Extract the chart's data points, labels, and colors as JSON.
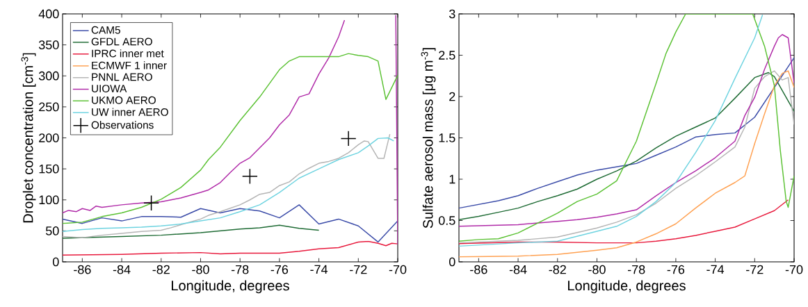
{
  "chart_data": [
    {
      "type": "line",
      "xlabel": "Longitude, degrees",
      "ylabel": "Droplet concentration [cm$^{-3}$]",
      "xlim": [
        -87,
        -70
      ],
      "xticks": [
        -86,
        -84,
        -82,
        -80,
        -78,
        -76,
        -74,
        -72,
        -70
      ],
      "ylim": [
        0,
        400
      ],
      "yticks": [
        0,
        50,
        100,
        150,
        200,
        250,
        300,
        350,
        400
      ],
      "legend": "top left",
      "grid": false,
      "series": [
        {
          "name": "CAM5",
          "color": "#3a4ba8",
          "x": [
            -87,
            -86,
            -85,
            -84,
            -83,
            -82,
            -81,
            -80,
            -79,
            -78,
            -77,
            -76,
            -75,
            -74,
            -73,
            -72,
            -71,
            -70
          ],
          "values": [
            69,
            62,
            71,
            66,
            73,
            73,
            72,
            86,
            79,
            86,
            82,
            71,
            92,
            61,
            69,
            58,
            32,
            66
          ]
        },
        {
          "name": "GFDL AERO",
          "color": "#1e6b34",
          "x": [
            -87,
            -84,
            -82,
            -80,
            -78,
            -77,
            -76,
            -75,
            -74
          ],
          "values": [
            38,
            41,
            43,
            47,
            53,
            55,
            59,
            54,
            51
          ]
        },
        {
          "name": "IPRC inner met",
          "color": "#e8193c",
          "x": [
            -87,
            -84,
            -82,
            -80,
            -79,
            -78,
            -76,
            -75,
            -74,
            -73,
            -72,
            -71.5,
            -71,
            -70.6,
            -70.3,
            -70
          ],
          "values": [
            11,
            12,
            14,
            15,
            13,
            14,
            14,
            17,
            21,
            23,
            32,
            33,
            30,
            26,
            30,
            29
          ]
        },
        {
          "name": "ECMWF 1 inner",
          "color": "#ffa050"
        },
        {
          "name": "PNNL AERO",
          "color": "#b4b4b4",
          "x": [
            -87,
            -86,
            -85,
            -84,
            -83,
            -82,
            -81.5,
            -81,
            -80,
            -79.6,
            -79,
            -78,
            -77.5,
            -77,
            -76.5,
            -76,
            -75.5,
            -75,
            -74.5,
            -74,
            -73.5,
            -73,
            -72.5,
            -72,
            -71.7,
            -71.5,
            -71,
            -70.7,
            -70.4
          ],
          "values": [
            41,
            39,
            43,
            46,
            49,
            51,
            55,
            60,
            69,
            75,
            81,
            92,
            100,
            109,
            112,
            123,
            129,
            142,
            151,
            159,
            162,
            167,
            176,
            189,
            195,
            194,
            167,
            167,
            206
          ]
        },
        {
          "name": "UIOWA",
          "color": "#b02aa8",
          "x": [
            -87,
            -86.7,
            -86.3,
            -86,
            -85.6,
            -85.3,
            -85,
            -84,
            -83,
            -82,
            -81.5,
            -81,
            -80,
            -79.6,
            -79,
            -78.5,
            -78,
            -77.5,
            -77,
            -76.5,
            -76,
            -75.5,
            -75,
            -74.5,
            -74,
            -73.5,
            -73,
            -72.7,
            -72.6,
            -70.1,
            -70
          ],
          "values": [
            79,
            83,
            81,
            86,
            83,
            90,
            88,
            92,
            95,
            97,
            100,
            103,
            112,
            116,
            128,
            144,
            159,
            168,
            184,
            200,
            221,
            237,
            266,
            271,
            303,
            329,
            363,
            390,
            null,
            398,
            28
          ]
        },
        {
          "name": "UKMO AERO",
          "color": "#5ac132",
          "x": [
            -87,
            -86,
            -85,
            -84,
            -83,
            -82,
            -81,
            -80,
            -79.6,
            -79,
            -78,
            -77,
            -76,
            -75.5,
            -75,
            -74,
            -73,
            -72.5,
            -72,
            -71.5,
            -71,
            -70.6,
            -70
          ],
          "values": [
            62,
            64,
            73,
            79,
            88,
            101,
            120,
            148,
            165,
            185,
            228,
            266,
            310,
            324,
            331,
            331,
            331,
            336,
            333,
            331,
            324,
            262,
            301
          ]
        },
        {
          "name": "UW inner AERO",
          "color": "#6dd3e0",
          "x": [
            -87,
            -86,
            -85,
            -84,
            -83,
            -82,
            -81,
            -80,
            -79,
            -78,
            -77,
            -76,
            -75,
            -74,
            -73,
            -72,
            -71.5,
            -71,
            -70.5,
            -70.2
          ],
          "values": [
            49,
            52,
            54,
            55,
            56,
            58,
            61,
            66,
            71,
            81,
            92,
            112,
            135,
            150,
            165,
            176,
            187,
            199,
            200,
            195
          ]
        },
        {
          "name": "Observations",
          "type": "scatter",
          "marker": "cross",
          "color": "#000000",
          "x": [
            -82.5,
            -77.5,
            -72.5
          ],
          "values": [
            95,
            138,
            199
          ]
        }
      ]
    },
    {
      "type": "line",
      "xlabel": "Longitude, degrees",
      "ylabel": "Sulfate aerosol mass [μg m$^{-3}$]",
      "xlim": [
        -87,
        -70
      ],
      "xticks": [
        -86,
        -84,
        -82,
        -80,
        -78,
        -76,
        -74,
        -72,
        -70
      ],
      "ylim": [
        0,
        3
      ],
      "yticks": [
        0,
        0.5,
        1,
        1.5,
        2,
        2.5,
        3
      ],
      "grid": false,
      "series": [
        {
          "color": "#3a4ba8",
          "x": [
            -87,
            -85,
            -84,
            -83,
            -82,
            -81,
            -80,
            -78.5,
            -78,
            -77,
            -76,
            -75,
            -74,
            -73,
            -72,
            -71,
            -70
          ],
          "values": [
            0.65,
            0.74,
            0.8,
            0.89,
            0.97,
            1.05,
            1.11,
            1.17,
            1.19,
            1.29,
            1.39,
            1.51,
            1.54,
            1.56,
            1.75,
            2.11,
            2.47
          ]
        },
        {
          "color": "#1e6b34",
          "x": [
            -87,
            -86,
            -85,
            -84,
            -83,
            -82,
            -81,
            -80,
            -79,
            -78,
            -77,
            -76,
            -75,
            -74,
            -73,
            -72,
            -71.3,
            -71,
            -70
          ],
          "values": [
            0.51,
            0.55,
            0.6,
            0.65,
            0.73,
            0.8,
            0.88,
            1.0,
            1.1,
            1.22,
            1.38,
            1.52,
            1.63,
            1.74,
            1.98,
            2.23,
            2.29,
            2.24,
            1.82
          ]
        },
        {
          "color": "#e8193c",
          "x": [
            -87,
            -84,
            -82,
            -80,
            -79,
            -78,
            -77,
            -76,
            -75,
            -74,
            -73,
            -72,
            -71,
            -70.3
          ],
          "values": [
            0.22,
            0.24,
            0.24,
            0.23,
            0.23,
            0.23,
            0.25,
            0.28,
            0.32,
            0.37,
            0.42,
            0.52,
            0.62,
            0.75
          ]
        },
        {
          "color": "#ffa050",
          "x": [
            -87,
            -84,
            -82,
            -80,
            -79,
            -78,
            -77,
            -76,
            -75,
            -74,
            -73,
            -72.5,
            -72,
            -71.5,
            -71,
            -70.6,
            -70.3,
            -70
          ],
          "values": [
            0.06,
            0.07,
            0.09,
            0.14,
            0.17,
            0.24,
            0.34,
            0.46,
            0.65,
            0.83,
            0.96,
            1.04,
            1.43,
            1.79,
            2.13,
            2.28,
            2.31,
            2.11
          ]
        },
        {
          "color": "#b4b4b4",
          "x": [
            -87,
            -84,
            -82,
            -80,
            -79,
            -78,
            -77,
            -76,
            -75,
            -74,
            -73,
            -72.5,
            -72,
            -71.5,
            -71,
            -70.6,
            -70.3,
            -70
          ],
          "values": [
            0.23,
            0.26,
            0.3,
            0.41,
            0.48,
            0.57,
            0.71,
            0.89,
            1.04,
            1.21,
            1.39,
            1.63,
            2.1,
            2.24,
            2.31,
            2.2,
            2.23,
            1.66
          ]
        },
        {
          "color": "#b02aa8",
          "x": [
            -87,
            -84,
            -82,
            -81,
            -80,
            -79,
            -78,
            -77,
            -76,
            -75,
            -74,
            -73,
            -72.5,
            -72,
            -71.5,
            -71,
            -70.8,
            -70.6,
            -70.3,
            -70
          ],
          "values": [
            0.43,
            0.45,
            0.49,
            0.51,
            0.54,
            0.58,
            0.63,
            0.8,
            0.96,
            1.1,
            1.26,
            1.46,
            1.77,
            1.99,
            2.33,
            2.61,
            2.71,
            2.75,
            2.71,
            2.16
          ]
        },
        {
          "color": "#5ac132",
          "x": [
            -87,
            -86,
            -85,
            -84,
            -83,
            -82,
            -81,
            -80,
            -79,
            -78,
            -77,
            -76.5,
            -76,
            -75.5,
            -72.1,
            -71.5,
            -71,
            -70.7,
            -70.4,
            -70.3,
            -70
          ],
          "values": [
            0.25,
            0.27,
            0.28,
            0.35,
            0.47,
            0.59,
            0.73,
            0.82,
            0.98,
            1.46,
            2.16,
            2.52,
            2.78,
            3.0,
            3.0,
            2.61,
            2.13,
            1.35,
            0.73,
            0.66,
            1.04
          ]
        },
        {
          "color": "#6dd3e0",
          "x": [
            -87,
            -84,
            -82,
            -80,
            -79,
            -78,
            -77,
            -76,
            -75,
            -74,
            -73,
            -72,
            -71.6
          ],
          "values": [
            0.19,
            0.23,
            0.25,
            0.37,
            0.43,
            0.55,
            0.73,
            0.96,
            1.32,
            1.71,
            2.22,
            2.71,
            2.99
          ]
        }
      ]
    }
  ]
}
